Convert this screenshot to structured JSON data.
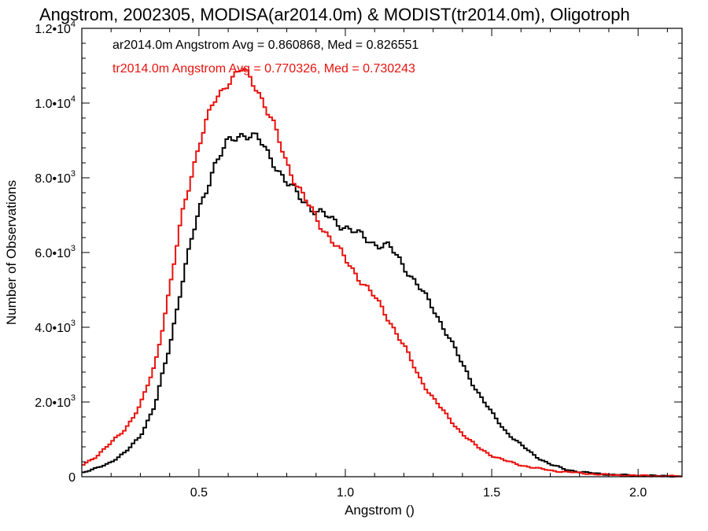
{
  "chart_data": {
    "type": "line",
    "title": "Angstrom, 2002305, MODISA(ar2014.0m) & MODIST(tr2014.0m), Oligotroph",
    "xlabel": "Angstrom ()",
    "ylabel": "Number of Observations",
    "xlim": [
      0.1,
      2.15
    ],
    "ylim": [
      0,
      12000
    ],
    "x_ticks": [
      {
        "value": 0.5,
        "label": "0.5"
      },
      {
        "value": 1.0,
        "label": "1.0"
      },
      {
        "value": 1.5,
        "label": "1.5"
      },
      {
        "value": 2.0,
        "label": "2.0"
      }
    ],
    "y_ticks": [
      {
        "value": 0,
        "mant": "0",
        "exp": ""
      },
      {
        "value": 2000,
        "mant": "2.0•10",
        "exp": "3"
      },
      {
        "value": 4000,
        "mant": "4.0•10",
        "exp": "3"
      },
      {
        "value": 6000,
        "mant": "6.0•10",
        "exp": "3"
      },
      {
        "value": 8000,
        "mant": "8.0•10",
        "exp": "3"
      },
      {
        "value": 10000,
        "mant": "1.0•10",
        "exp": "4"
      },
      {
        "value": 12000,
        "mant": "1.2•10",
        "exp": "4"
      }
    ],
    "grid": false,
    "annotations": [
      {
        "text": "ar2014.0m Angstrom Avg = 0.860868, Med = 0.826551",
        "color": "#000000"
      },
      {
        "text": "tr2014.0m Angstrom Avg = 0.770326, Med = 0.730243",
        "color": "#e8120e"
      }
    ],
    "series": [
      {
        "color": "#000000",
        "x": [
          0.1,
          0.15,
          0.2,
          0.25,
          0.3,
          0.35,
          0.4,
          0.45,
          0.5,
          0.55,
          0.6,
          0.65,
          0.7,
          0.75,
          0.8,
          0.85,
          0.9,
          0.95,
          1.0,
          1.05,
          1.1,
          1.15,
          1.2,
          1.25,
          1.3,
          1.35,
          1.4,
          1.45,
          1.5,
          1.55,
          1.6,
          1.65,
          1.7,
          1.75,
          1.8,
          1.85,
          1.9,
          2.0,
          2.1,
          2.15
        ],
        "values": [
          100,
          220,
          400,
          650,
          1100,
          1900,
          3500,
          5500,
          7100,
          8300,
          8950,
          9200,
          9050,
          8500,
          7850,
          7450,
          7100,
          6900,
          6700,
          6450,
          6250,
          6150,
          5650,
          5100,
          4500,
          3800,
          3000,
          2300,
          1700,
          1200,
          850,
          550,
          330,
          200,
          130,
          90,
          60,
          30,
          20,
          10
        ]
      },
      {
        "color": "#e8120e",
        "x": [
          0.1,
          0.15,
          0.2,
          0.25,
          0.3,
          0.35,
          0.4,
          0.45,
          0.5,
          0.55,
          0.6,
          0.65,
          0.7,
          0.75,
          0.8,
          0.85,
          0.9,
          0.95,
          1.0,
          1.05,
          1.1,
          1.15,
          1.2,
          1.25,
          1.3,
          1.35,
          1.4,
          1.45,
          1.5,
          1.55,
          1.6,
          1.65,
          1.7,
          1.75,
          1.8,
          1.85,
          1.9,
          2.0,
          2.1,
          2.15
        ],
        "values": [
          300,
          550,
          900,
          1300,
          1900,
          3000,
          5000,
          7300,
          8900,
          10000,
          10600,
          10900,
          10400,
          9500,
          8400,
          7600,
          6900,
          6400,
          5800,
          5300,
          4800,
          4200,
          3500,
          2700,
          2100,
          1600,
          1150,
          800,
          570,
          420,
          310,
          230,
          170,
          130,
          100,
          70,
          50,
          30,
          15,
          10
        ]
      }
    ]
  }
}
